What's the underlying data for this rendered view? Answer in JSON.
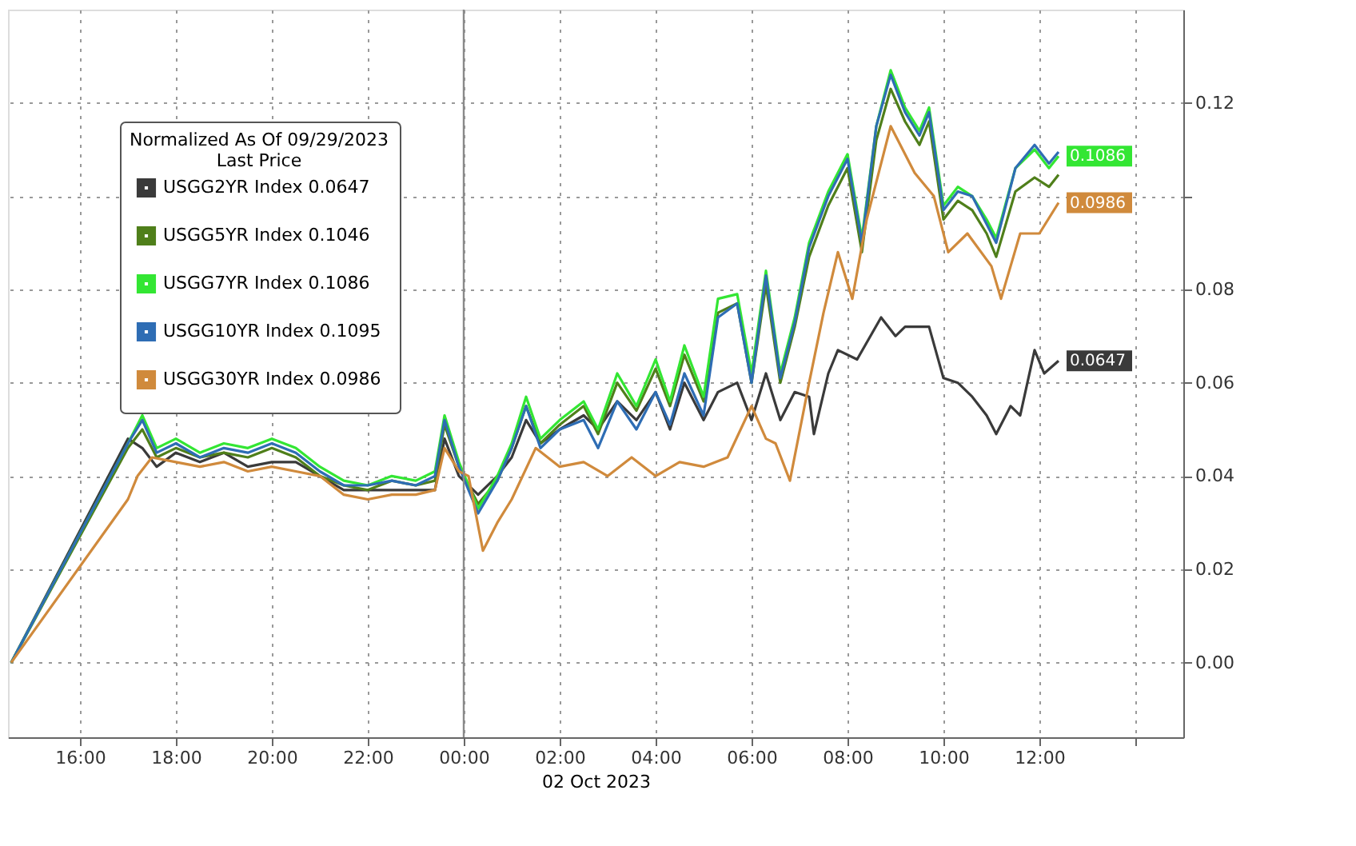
{
  "chart_data": {
    "type": "line",
    "legend_title": "Normalized As Of 09/29/2023\nLast Price",
    "xlabel": "02 Oct 2023",
    "xlim": [
      "2023-10-01T14:30",
      "2023-10-02T15:00"
    ],
    "ylim": [
      -0.016,
      0.14
    ],
    "xticks": [
      {
        "value": "2023-10-01T16:00",
        "label": "16:00"
      },
      {
        "value": "2023-10-01T18:00",
        "label": "18:00"
      },
      {
        "value": "2023-10-01T20:00",
        "label": "20:00"
      },
      {
        "value": "2023-10-01T22:00",
        "label": "22:00"
      },
      {
        "value": "2023-10-02T00:00",
        "label": "00:00"
      },
      {
        "value": "2023-10-02T02:00",
        "label": "02:00"
      },
      {
        "value": "2023-10-02T04:00",
        "label": "04:00"
      },
      {
        "value": "2023-10-02T06:00",
        "label": "06:00"
      },
      {
        "value": "2023-10-02T08:00",
        "label": "08:00"
      },
      {
        "value": "2023-10-02T10:00",
        "label": "10:00"
      },
      {
        "value": "2023-10-02T12:00",
        "label": "12:00"
      },
      {
        "value": "2023-10-02T14:00",
        "label": null
      }
    ],
    "yticks": [
      {
        "value": 0,
        "label": "0.00"
      },
      {
        "value": 0.02,
        "label": "0.02"
      },
      {
        "value": 0.04,
        "label": "0.04"
      },
      {
        "value": 0.06,
        "label": "0.06"
      },
      {
        "value": 0.08,
        "label": "0.08"
      },
      {
        "value": 0.1,
        "label": null
      },
      {
        "value": 0.12,
        "label": "0.12"
      }
    ],
    "grid": true,
    "legend": "top left",
    "marker": "none",
    "line_style": "solid",
    "ref_lines": [
      {
        "axis": "x",
        "value": "2023-10-02T00:00",
        "color": "#8a8a8a"
      }
    ],
    "x": [
      "2023-10-01T14:34",
      "2023-10-01T17:00",
      "2023-10-01T17:18",
      "2023-10-01T17:36",
      "2023-10-01T18:00",
      "2023-10-01T18:30",
      "2023-10-01T19:00",
      "2023-10-01T19:30",
      "2023-10-01T20:00",
      "2023-10-01T20:30",
      "2023-10-01T21:00",
      "2023-10-01T21:30",
      "2023-10-01T22:00",
      "2023-10-01T22:30",
      "2023-10-01T23:00",
      "2023-10-01T23:24",
      "2023-10-01T23:36",
      "2023-10-01T23:54",
      "2023-10-02T00:18",
      "2023-10-02T00:42",
      "2023-10-02T01:00",
      "2023-10-02T01:18",
      "2023-10-02T01:36",
      "2023-10-02T02:00",
      "2023-10-02T02:30",
      "2023-10-02T02:48",
      "2023-10-02T03:12",
      "2023-10-02T03:36",
      "2023-10-02T04:00",
      "2023-10-02T04:18",
      "2023-10-02T04:36",
      "2023-10-02T05:00",
      "2023-10-02T05:18",
      "2023-10-02T05:42",
      "2023-10-02T06:00",
      "2023-10-02T06:18",
      "2023-10-02T06:36",
      "2023-10-02T06:54",
      "2023-10-02T07:12",
      "2023-10-02T07:36",
      "2023-10-02T08:00",
      "2023-10-02T08:18",
      "2023-10-02T08:36",
      "2023-10-02T08:54",
      "2023-10-02T09:12",
      "2023-10-02T09:30",
      "2023-10-02T09:42",
      "2023-10-02T10:00",
      "2023-10-02T10:18",
      "2023-10-02T10:36",
      "2023-10-02T10:54",
      "2023-10-02T11:06",
      "2023-10-02T11:30",
      "2023-10-02T11:54",
      "2023-10-02T12:12",
      "2023-10-02T12:24"
    ],
    "series": [
      {
        "name": "USGG2YR Index 0.0647",
        "color": "#3a3a3a",
        "x": [
          "2023-10-01T14:34",
          "2023-10-01T17:00",
          "2023-10-01T17:18",
          "2023-10-01T17:36",
          "2023-10-01T18:00",
          "2023-10-01T18:30",
          "2023-10-01T19:00",
          "2023-10-01T19:30",
          "2023-10-01T20:00",
          "2023-10-01T20:30",
          "2023-10-01T21:00",
          "2023-10-01T21:30",
          "2023-10-01T22:00",
          "2023-10-01T22:30",
          "2023-10-01T23:00",
          "2023-10-01T23:24",
          "2023-10-01T23:36",
          "2023-10-01T23:54",
          "2023-10-02T00:18",
          "2023-10-02T00:42",
          "2023-10-02T01:00",
          "2023-10-02T01:18",
          "2023-10-02T01:36",
          "2023-10-02T02:00",
          "2023-10-02T02:30",
          "2023-10-02T02:48",
          "2023-10-02T03:12",
          "2023-10-02T03:36",
          "2023-10-02T04:00",
          "2023-10-02T04:18",
          "2023-10-02T04:36",
          "2023-10-02T05:00",
          "2023-10-02T05:18",
          "2023-10-02T05:42",
          "2023-10-02T06:00",
          "2023-10-02T06:18",
          "2023-10-02T06:36",
          "2023-10-02T06:54",
          "2023-10-02T07:12",
          "2023-10-02T07:18",
          "2023-10-02T07:36",
          "2023-10-02T07:48",
          "2023-10-02T08:12",
          "2023-10-02T08:42",
          "2023-10-02T09:00",
          "2023-10-02T09:12",
          "2023-10-02T09:42",
          "2023-10-02T10:00",
          "2023-10-02T10:18",
          "2023-10-02T10:36",
          "2023-10-02T10:54",
          "2023-10-02T11:06",
          "2023-10-02T11:24",
          "2023-10-02T11:36",
          "2023-10-02T11:54",
          "2023-10-02T12:06",
          "2023-10-02T12:24"
        ],
        "values": [
          0,
          0.048,
          0.046,
          0.042,
          0.045,
          0.043,
          0.045,
          0.042,
          0.043,
          0.043,
          0.04,
          0.037,
          0.037,
          0.037,
          0.037,
          0.037,
          0.048,
          0.04,
          0.036,
          0.04,
          0.044,
          0.052,
          0.047,
          0.05,
          0.053,
          0.05,
          0.056,
          0.052,
          0.058,
          0.05,
          0.06,
          0.052,
          0.058,
          0.06,
          0.052,
          0.062,
          0.052,
          0.058,
          0.057,
          0.049,
          0.062,
          0.067,
          0.065,
          0.074,
          0.07,
          0.072,
          0.072,
          0.061,
          0.06,
          0.057,
          0.053,
          0.049,
          0.055,
          0.053,
          0.067,
          0.062,
          0.0647
        ],
        "value_labels": [
          null,
          null,
          null,
          null,
          null,
          null,
          null,
          null,
          null,
          null,
          null,
          null,
          null,
          null,
          null,
          null,
          null,
          null,
          null,
          null,
          null,
          null,
          null,
          null,
          null,
          null,
          null,
          null,
          null,
          null,
          null,
          null,
          null,
          null,
          null,
          null,
          null,
          null,
          null,
          null,
          null,
          null,
          null,
          null,
          null,
          null,
          null,
          null,
          null,
          null,
          null,
          null,
          null,
          null,
          null,
          null,
          "0.0647"
        ]
      },
      {
        "name": "USGG5YR Index 0.1046",
        "color": "#4f7f1a",
        "values": [
          0,
          0.046,
          0.05,
          0.044,
          0.046,
          0.044,
          0.045,
          0.044,
          0.046,
          0.044,
          0.04,
          0.038,
          0.037,
          0.039,
          0.038,
          0.039,
          0.051,
          0.042,
          0.034,
          0.039,
          0.046,
          0.055,
          0.047,
          0.051,
          0.055,
          0.049,
          0.06,
          0.054,
          0.063,
          0.055,
          0.066,
          0.056,
          0.075,
          0.077,
          0.06,
          0.081,
          0.06,
          0.072,
          0.087,
          0.098,
          0.106,
          0.088,
          0.112,
          0.123,
          0.116,
          0.111,
          0.116,
          0.095,
          0.099,
          0.097,
          0.092,
          0.087,
          0.101,
          0.104,
          0.102,
          0.1046
        ]
      },
      {
        "name": "USGG7YR Index 0.1086",
        "color": "#33e633",
        "values": [
          0,
          0.047,
          0.053,
          0.046,
          0.048,
          0.045,
          0.047,
          0.046,
          0.048,
          0.046,
          0.042,
          0.039,
          0.038,
          0.04,
          0.039,
          0.041,
          0.053,
          0.043,
          0.033,
          0.04,
          0.047,
          0.057,
          0.048,
          0.052,
          0.056,
          0.05,
          0.062,
          0.055,
          0.065,
          0.056,
          0.068,
          0.057,
          0.078,
          0.079,
          0.062,
          0.084,
          0.062,
          0.074,
          0.09,
          0.101,
          0.109,
          0.091,
          0.115,
          0.127,
          0.119,
          0.114,
          0.119,
          0.098,
          0.102,
          0.1,
          0.095,
          0.091,
          0.106,
          0.11,
          0.106,
          0.1086
        ],
        "value_labels": [
          null,
          null,
          null,
          null,
          null,
          null,
          null,
          null,
          null,
          null,
          null,
          null,
          null,
          null,
          null,
          null,
          null,
          null,
          null,
          null,
          null,
          null,
          null,
          null,
          null,
          null,
          null,
          null,
          null,
          null,
          null,
          null,
          null,
          null,
          null,
          null,
          null,
          null,
          null,
          null,
          null,
          null,
          null,
          null,
          null,
          null,
          null,
          null,
          null,
          null,
          null,
          null,
          null,
          null,
          null,
          "0.1086"
        ]
      },
      {
        "name": "USGG10YR Index 0.1095",
        "color": "#2e6db4",
        "values": [
          0,
          0.047,
          0.052,
          0.045,
          0.047,
          0.044,
          0.046,
          0.045,
          0.047,
          0.045,
          0.041,
          0.038,
          0.038,
          0.039,
          0.038,
          0.04,
          0.052,
          0.042,
          0.032,
          0.039,
          0.046,
          0.055,
          0.046,
          0.05,
          0.052,
          0.046,
          0.056,
          0.05,
          0.058,
          0.051,
          0.062,
          0.053,
          0.074,
          0.077,
          0.06,
          0.083,
          0.061,
          0.073,
          0.089,
          0.1,
          0.108,
          0.09,
          0.115,
          0.126,
          0.118,
          0.113,
          0.118,
          0.097,
          0.101,
          0.1,
          0.094,
          0.09,
          0.106,
          0.111,
          0.107,
          0.1095
        ]
      },
      {
        "name": "USGG30YR Index 0.0986",
        "color": "#d08a3c",
        "x": [
          "2023-10-01T14:34",
          "2023-10-01T17:00",
          "2023-10-01T17:12",
          "2023-10-01T17:30",
          "2023-10-01T18:00",
          "2023-10-01T18:30",
          "2023-10-01T19:00",
          "2023-10-01T19:30",
          "2023-10-01T20:00",
          "2023-10-01T20:30",
          "2023-10-01T21:00",
          "2023-10-01T21:30",
          "2023-10-01T22:00",
          "2023-10-01T22:30",
          "2023-10-01T23:00",
          "2023-10-01T23:24",
          "2023-10-01T23:36",
          "2023-10-01T23:54",
          "2023-10-02T00:06",
          "2023-10-02T00:24",
          "2023-10-02T00:42",
          "2023-10-02T01:00",
          "2023-10-02T01:30",
          "2023-10-02T02:00",
          "2023-10-02T02:30",
          "2023-10-02T03:00",
          "2023-10-02T03:30",
          "2023-10-02T04:00",
          "2023-10-02T04:30",
          "2023-10-02T05:00",
          "2023-10-02T05:30",
          "2023-10-02T06:00",
          "2023-10-02T06:18",
          "2023-10-02T06:30",
          "2023-10-02T06:48",
          "2023-10-02T07:12",
          "2023-10-02T07:30",
          "2023-10-02T07:48",
          "2023-10-02T08:06",
          "2023-10-02T08:24",
          "2023-10-02T08:54",
          "2023-10-02T09:24",
          "2023-10-02T09:48",
          "2023-10-02T10:06",
          "2023-10-02T10:30",
          "2023-10-02T11:00",
          "2023-10-02T11:12",
          "2023-10-02T11:36",
          "2023-10-02T12:00",
          "2023-10-02T12:24"
        ],
        "values": [
          0,
          0.035,
          0.04,
          0.044,
          0.043,
          0.042,
          0.043,
          0.041,
          0.042,
          0.041,
          0.04,
          0.036,
          0.035,
          0.036,
          0.036,
          0.037,
          0.046,
          0.041,
          0.04,
          0.024,
          0.03,
          0.035,
          0.046,
          0.042,
          0.043,
          0.04,
          0.044,
          0.04,
          0.043,
          0.042,
          0.044,
          0.055,
          0.048,
          0.047,
          0.039,
          0.06,
          0.075,
          0.088,
          0.078,
          0.095,
          0.115,
          0.105,
          0.1,
          0.088,
          0.092,
          0.085,
          0.078,
          0.092,
          0.092,
          0.0986
        ],
        "value_labels": [
          null,
          null,
          null,
          null,
          null,
          null,
          null,
          null,
          null,
          null,
          null,
          null,
          null,
          null,
          null,
          null,
          null,
          null,
          null,
          null,
          null,
          null,
          null,
          null,
          null,
          null,
          null,
          null,
          null,
          null,
          null,
          null,
          null,
          null,
          null,
          null,
          null,
          null,
          null,
          null,
          null,
          null,
          null,
          null,
          null,
          null,
          null,
          null,
          null,
          "0.0986"
        ]
      }
    ]
  }
}
